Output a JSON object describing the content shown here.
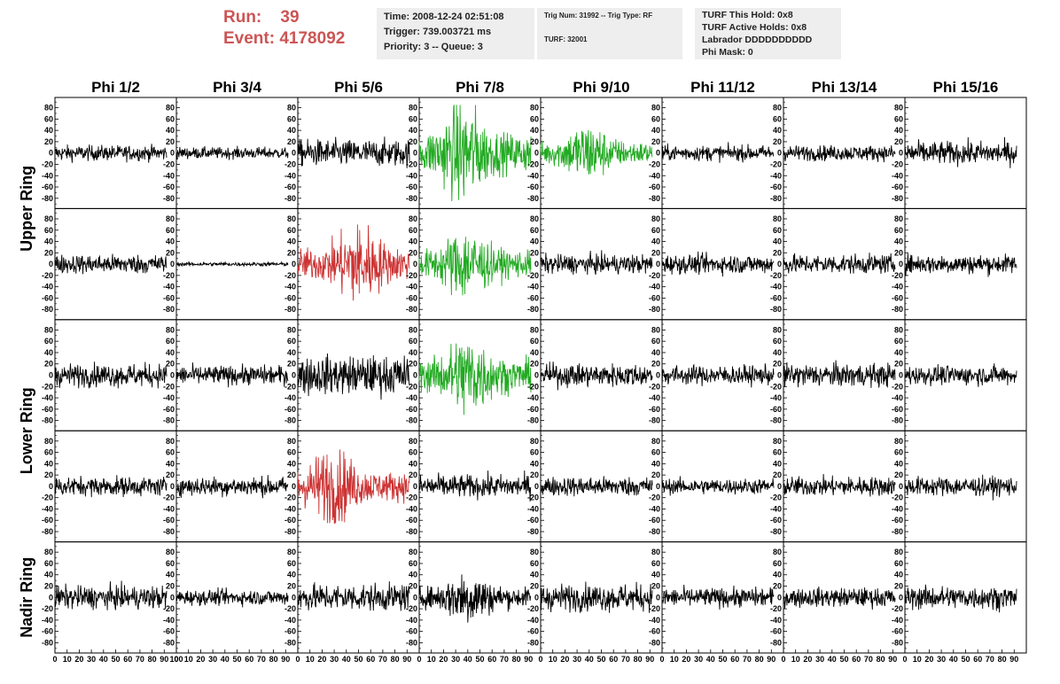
{
  "header": {
    "run_label": "Run:",
    "run_value": "39",
    "event_label": "Event:",
    "event_value": "4178092"
  },
  "info_box_1": {
    "time": "Time: 2008-12-24 02:51:08",
    "trigger": "Trigger: 739.003721 ms",
    "priority": "Priority: 3 -- Queue: 3"
  },
  "info_box_2": {
    "trig": "Trig Num: 31992 -- Trig Type: RF",
    "turf": "TURF: 32001"
  },
  "info_box_3": {
    "hold": "TURF This Hold: 0x8",
    "active": "TURF Active Holds: 0x8",
    "labrador": "Labrador DDDDDDDDDD",
    "mask": "Phi Mask: 0"
  },
  "colors": {
    "normal": "#000000",
    "triggered_green": "#22aa22",
    "triggered_red": "#cc3333",
    "run_text": "#cc5555"
  },
  "chart_data": {
    "type": "line",
    "columns": [
      "Phi 1/2",
      "Phi 3/4",
      "Phi 5/6",
      "Phi 7/8",
      "Phi 9/10",
      "Phi 11/12",
      "Phi 13/14",
      "Phi 15/16"
    ],
    "ring_labels": [
      "Upper Ring",
      "Lower Ring",
      "Nadir Ring"
    ],
    "rows": 5,
    "ring_row_spans": [
      [
        0,
        1
      ],
      [
        2,
        3
      ],
      [
        4,
        4
      ]
    ],
    "y_ticks": [
      -80,
      -60,
      -40,
      -20,
      0,
      20,
      40,
      60,
      80
    ],
    "ylim": [
      -95,
      95
    ],
    "x_ticks": [
      0,
      10,
      20,
      30,
      40,
      50,
      60,
      70,
      80,
      90,
      100
    ],
    "xlim": [
      0,
      100
    ],
    "x_trace_range": [
      0,
      92
    ],
    "panel_colors": [
      [
        "normal",
        "normal",
        "normal",
        "triggered_green",
        "triggered_green",
        "normal",
        "normal",
        "normal"
      ],
      [
        "normal",
        "normal",
        "triggered_red",
        "triggered_green",
        "normal",
        "normal",
        "normal",
        "normal"
      ],
      [
        "normal",
        "normal",
        "normal",
        "triggered_green",
        "normal",
        "normal",
        "normal",
        "normal"
      ],
      [
        "normal",
        "normal",
        "triggered_red",
        "normal",
        "normal",
        "normal",
        "normal",
        "normal"
      ],
      [
        "normal",
        "normal",
        "normal",
        "normal",
        "normal",
        "normal",
        "normal",
        "normal"
      ]
    ],
    "approx_amplitudes": [
      [
        20,
        15,
        35,
        85,
        50,
        20,
        20,
        30
      ],
      [
        25,
        5,
        70,
        60,
        25,
        25,
        25,
        25
      ],
      [
        30,
        25,
        50,
        70,
        30,
        25,
        30,
        25
      ],
      [
        25,
        25,
        65,
        30,
        25,
        20,
        25,
        25
      ],
      [
        30,
        20,
        35,
        45,
        35,
        25,
        25,
        30
      ]
    ],
    "signal_peak_x": [
      [
        null,
        null,
        null,
        36,
        38,
        null,
        null,
        null
      ],
      [
        null,
        null,
        50,
        38,
        null,
        null,
        null,
        null
      ],
      [
        null,
        null,
        null,
        40,
        null,
        null,
        null,
        null
      ],
      [
        null,
        null,
        28,
        null,
        null,
        null,
        null,
        null
      ],
      [
        null,
        null,
        null,
        40,
        null,
        null,
        null,
        null
      ]
    ]
  }
}
